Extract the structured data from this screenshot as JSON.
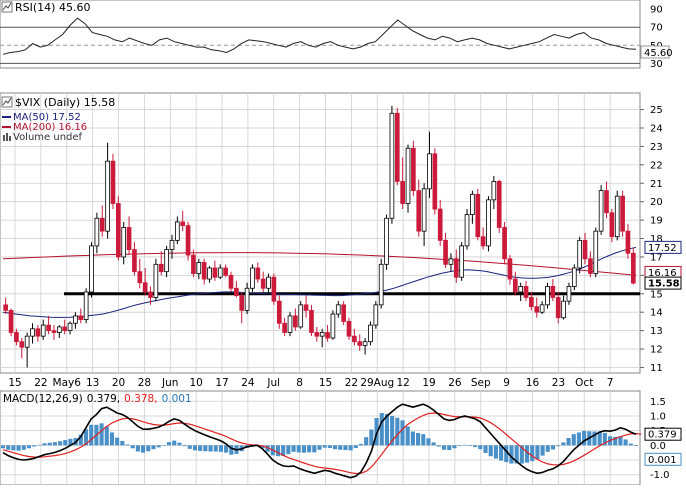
{
  "chart_data": {
    "type": "candlestick",
    "colors": {
      "up": "#000000",
      "down": "#cc1a3a",
      "ma50": "#1a237e",
      "ma200": "#b3122e",
      "macd": "#000000",
      "signal": "#e02020",
      "hist": "#4a90c8",
      "grid": "#cfcfcf",
      "support": "#000000"
    },
    "x_labels": [
      "15",
      "22",
      "May6",
      "13",
      "20",
      "28",
      "Jun",
      "10",
      "17",
      "24",
      "Jul",
      "8",
      "15",
      "22",
      "29Aug",
      "12",
      "19",
      "26",
      "Sep",
      "9",
      "16",
      "23",
      "Oct",
      "7"
    ],
    "rsi": {
      "legend": "RSI(14) 45.60",
      "value_label": "45.60",
      "ticks": [
        "90",
        "70",
        "50",
        "30"
      ],
      "tick_values": [
        90,
        70,
        50,
        30
      ],
      "ylim": [
        26,
        99
      ],
      "levels": [
        70,
        30
      ],
      "values": [
        40,
        42,
        43,
        45,
        52,
        48,
        50,
        56,
        62,
        72,
        80,
        74,
        64,
        62,
        60,
        56,
        54,
        58,
        55,
        52,
        50,
        56,
        58,
        54,
        52,
        50,
        48,
        48,
        45,
        44,
        42,
        46,
        52,
        56,
        55,
        54,
        52,
        50,
        48,
        52,
        54,
        50,
        48,
        52,
        54,
        50,
        48,
        46,
        48,
        52,
        54,
        62,
        70,
        78,
        72,
        66,
        62,
        58,
        56,
        60,
        58,
        54,
        56,
        58,
        56,
        52,
        50,
        48,
        46,
        48,
        50,
        52,
        54,
        58,
        62,
        60,
        58,
        62,
        64,
        58,
        56,
        52,
        50,
        48,
        46,
        45.6
      ]
    },
    "price": {
      "legend": "$VIX (Daily) 15.58",
      "legend_ma50": "MA(50) 17.52",
      "legend_ma200": "MA(200) 16.16",
      "legend_volume": "Volume undef",
      "ticks": [
        "25",
        "24",
        "23",
        "22",
        "21",
        "20",
        "19",
        "18",
        "17",
        "16",
        "15",
        "14",
        "13",
        "12",
        "11"
      ],
      "tick_values": [
        25,
        24,
        23,
        22,
        21,
        20,
        19,
        18,
        17,
        16,
        15,
        14,
        13,
        12,
        11
      ],
      "ylim": [
        10.7,
        25.9
      ],
      "support_level": 15.0,
      "ma50_label": "17.52",
      "ma50_value": 17.52,
      "ma200_label": "16.16",
      "ma200_value": 16.16,
      "last_label": "15.58",
      "last_value": 15.58,
      "candles": [
        [
          14.4,
          14.8,
          13.9,
          14.1
        ],
        [
          14.1,
          14.2,
          12.7,
          12.9
        ],
        [
          12.9,
          13.1,
          12.2,
          12.4
        ],
        [
          12.4,
          12.6,
          11.5,
          12.1
        ],
        [
          12.1,
          12.9,
          11.0,
          12.7
        ],
        [
          12.7,
          13.4,
          12.3,
          13.1
        ],
        [
          13.1,
          13.3,
          12.4,
          12.7
        ],
        [
          12.7,
          13.6,
          12.5,
          13.3
        ],
        [
          13.3,
          13.8,
          12.8,
          13.0
        ],
        [
          13.0,
          13.3,
          12.5,
          12.9
        ],
        [
          12.9,
          13.3,
          12.6,
          13.2
        ],
        [
          13.2,
          13.6,
          12.8,
          13.0
        ],
        [
          13.0,
          13.5,
          12.8,
          13.4
        ],
        [
          13.4,
          14.0,
          13.1,
          13.8
        ],
        [
          13.8,
          14.2,
          13.4,
          13.6
        ],
        [
          13.6,
          15.3,
          13.4,
          15.1
        ],
        [
          15.1,
          17.8,
          14.8,
          17.6
        ],
        [
          17.6,
          19.4,
          17.2,
          19.1
        ],
        [
          19.1,
          19.8,
          18.1,
          18.4
        ],
        [
          18.4,
          23.2,
          18.0,
          22.2
        ],
        [
          22.2,
          22.6,
          19.6,
          19.9
        ],
        [
          19.9,
          20.3,
          16.8,
          17.0
        ],
        [
          17.0,
          18.9,
          16.6,
          18.6
        ],
        [
          18.6,
          19.2,
          17.1,
          17.4
        ],
        [
          17.4,
          17.8,
          16.0,
          16.2
        ],
        [
          16.2,
          16.9,
          15.3,
          15.6
        ],
        [
          15.6,
          16.4,
          14.9,
          15.1
        ],
        [
          15.1,
          15.4,
          14.4,
          14.8
        ],
        [
          14.8,
          16.9,
          14.6,
          16.6
        ],
        [
          16.6,
          17.3,
          16.0,
          16.2
        ],
        [
          16.2,
          17.6,
          15.9,
          17.4
        ],
        [
          17.4,
          18.2,
          16.9,
          17.9
        ],
        [
          17.9,
          19.2,
          17.7,
          18.9
        ],
        [
          18.9,
          19.5,
          18.4,
          18.7
        ],
        [
          18.7,
          18.9,
          16.8,
          17.1
        ],
        [
          17.1,
          17.4,
          15.9,
          16.1
        ],
        [
          16.1,
          16.9,
          15.8,
          16.7
        ],
        [
          16.7,
          16.9,
          15.5,
          15.8
        ],
        [
          15.8,
          16.5,
          15.6,
          16.4
        ],
        [
          16.4,
          16.8,
          15.7,
          15.9
        ],
        [
          15.9,
          16.6,
          15.8,
          16.4
        ],
        [
          16.4,
          16.6,
          15.9,
          16.0
        ],
        [
          16.0,
          16.2,
          15.1,
          15.3
        ],
        [
          15.3,
          15.7,
          14.8,
          14.9
        ],
        [
          14.9,
          15.1,
          13.4,
          14.1
        ],
        [
          14.1,
          15.6,
          13.9,
          15.3
        ],
        [
          15.3,
          16.6,
          15.1,
          16.4
        ],
        [
          16.4,
          16.7,
          15.6,
          15.8
        ],
        [
          15.8,
          16.2,
          15.1,
          15.3
        ],
        [
          15.3,
          16.1,
          15.0,
          15.9
        ],
        [
          15.9,
          16.1,
          14.4,
          14.6
        ],
        [
          14.6,
          14.9,
          13.1,
          13.4
        ],
        [
          13.4,
          13.7,
          12.7,
          12.9
        ],
        [
          12.9,
          14.0,
          12.7,
          13.8
        ],
        [
          13.8,
          14.2,
          13.0,
          13.2
        ],
        [
          13.2,
          14.6,
          13.1,
          14.4
        ],
        [
          14.4,
          14.9,
          13.7,
          14.1
        ],
        [
          14.1,
          14.4,
          12.7,
          12.9
        ],
        [
          12.9,
          13.2,
          12.4,
          12.7
        ],
        [
          12.7,
          13.1,
          12.1,
          12.9
        ],
        [
          12.9,
          13.3,
          12.4,
          12.6
        ],
        [
          12.6,
          14.1,
          12.5,
          13.9
        ],
        [
          13.9,
          14.6,
          13.7,
          14.4
        ],
        [
          14.4,
          14.6,
          13.3,
          13.5
        ],
        [
          13.5,
          13.7,
          12.5,
          12.7
        ],
        [
          12.7,
          13.1,
          12.2,
          12.4
        ],
        [
          12.4,
          12.8,
          11.9,
          12.2
        ],
        [
          12.2,
          12.6,
          11.7,
          12.4
        ],
        [
          12.4,
          13.5,
          12.2,
          13.3
        ],
        [
          13.3,
          14.6,
          13.1,
          14.4
        ],
        [
          14.4,
          16.9,
          14.2,
          16.6
        ],
        [
          16.6,
          19.3,
          16.3,
          19.1
        ],
        [
          19.1,
          25.2,
          18.8,
          24.8
        ],
        [
          24.8,
          25.1,
          20.9,
          21.1
        ],
        [
          21.1,
          22.4,
          19.6,
          19.9
        ],
        [
          19.9,
          23.1,
          19.4,
          22.9
        ],
        [
          22.9,
          23.3,
          20.3,
          20.6
        ],
        [
          20.6,
          21.2,
          18.1,
          18.4
        ],
        [
          18.4,
          21.0,
          17.6,
          20.7
        ],
        [
          20.7,
          23.8,
          20.2,
          22.6
        ],
        [
          22.6,
          22.9,
          19.3,
          19.6
        ],
        [
          19.6,
          20.1,
          17.6,
          17.9
        ],
        [
          17.9,
          18.3,
          16.4,
          16.6
        ],
        [
          16.6,
          17.2,
          16.2,
          16.9
        ],
        [
          16.9,
          17.4,
          15.6,
          15.9
        ],
        [
          15.9,
          17.8,
          15.7,
          17.6
        ],
        [
          17.6,
          19.6,
          17.4,
          19.3
        ],
        [
          19.3,
          20.6,
          18.8,
          20.4
        ],
        [
          20.4,
          20.7,
          17.9,
          18.1
        ],
        [
          18.1,
          18.6,
          17.4,
          17.6
        ],
        [
          17.6,
          20.3,
          17.3,
          20.1
        ],
        [
          20.1,
          21.4,
          19.6,
          21.1
        ],
        [
          21.1,
          21.2,
          18.3,
          18.6
        ],
        [
          18.6,
          18.9,
          16.6,
          16.9
        ],
        [
          16.9,
          17.1,
          15.5,
          15.8
        ],
        [
          15.8,
          16.2,
          14.9,
          15.1
        ],
        [
          15.1,
          15.6,
          14.6,
          15.4
        ],
        [
          15.4,
          15.7,
          14.6,
          14.8
        ],
        [
          14.8,
          15.1,
          14.1,
          14.3
        ],
        [
          14.3,
          14.8,
          13.7,
          14.0
        ],
        [
          14.0,
          14.6,
          13.9,
          14.4
        ],
        [
          14.4,
          15.6,
          14.2,
          15.4
        ],
        [
          15.4,
          15.8,
          14.6,
          14.8
        ],
        [
          14.8,
          15.1,
          13.4,
          13.7
        ],
        [
          13.7,
          14.9,
          13.6,
          14.6
        ],
        [
          14.6,
          15.6,
          14.4,
          15.4
        ],
        [
          15.4,
          16.6,
          15.2,
          16.4
        ],
        [
          16.4,
          18.1,
          16.1,
          17.9
        ],
        [
          17.9,
          18.3,
          16.6,
          16.9
        ],
        [
          16.9,
          17.3,
          15.9,
          16.1
        ],
        [
          16.1,
          18.6,
          15.9,
          18.4
        ],
        [
          18.4,
          20.9,
          18.2,
          20.6
        ],
        [
          20.6,
          21.1,
          19.1,
          19.4
        ],
        [
          19.4,
          19.6,
          17.8,
          18.1
        ],
        [
          18.1,
          20.6,
          17.9,
          20.3
        ],
        [
          20.3,
          20.6,
          18.1,
          18.4
        ],
        [
          18.4,
          18.8,
          16.9,
          17.2
        ],
        [
          17.2,
          17.5,
          15.5,
          15.58
        ]
      ],
      "ma50": [
        14.0,
        13.95,
        13.9,
        13.85,
        13.8,
        13.78,
        13.75,
        13.73,
        13.72,
        13.72,
        13.73,
        13.75,
        13.78,
        13.82,
        13.86,
        13.92,
        14.0,
        14.1,
        14.2,
        14.32,
        14.42,
        14.5,
        14.58,
        14.65,
        14.72,
        14.78,
        14.84,
        14.9,
        14.96,
        15.0,
        15.03,
        15.06,
        15.08,
        15.1,
        15.1,
        15.08,
        15.06,
        15.04,
        15.02,
        15.0,
        14.99,
        14.98,
        14.97,
        14.96,
        14.95,
        14.94,
        14.93,
        14.92,
        14.91,
        14.9,
        14.9,
        14.92,
        14.95,
        14.98,
        15.02,
        15.06,
        15.12,
        15.2,
        15.3,
        15.42,
        15.54,
        15.66,
        15.78,
        15.9,
        16.0,
        16.1,
        16.18,
        16.24,
        16.28,
        16.3,
        16.28,
        16.25,
        16.2,
        16.12,
        16.04,
        15.96,
        15.9,
        15.86,
        15.84,
        15.84,
        15.86,
        15.9,
        15.96,
        16.04,
        16.14,
        16.26,
        16.4,
        16.56,
        16.74,
        16.92,
        17.08,
        17.22,
        17.34,
        17.44,
        17.52
      ]
    },
    "macd": {
      "legend": "MACD(12,26,9) 0.379, 0.378, 0.001",
      "legend_prefix": "MACD(12,26,9)",
      "legend_macd": "0.379,",
      "legend_signal": "0.378,",
      "legend_hist": "0.001",
      "ticks": [
        "1.5",
        "1.0",
        "0.5",
        "0.0",
        "-0.5",
        "-1.0"
      ],
      "tick_values": [
        1.5,
        1.0,
        0.5,
        0.0,
        -0.5,
        -1.0
      ],
      "ylim": [
        -1.35,
        1.85
      ],
      "macd_label": "0.379",
      "macd_value": 0.379,
      "hist_label": "0.001",
      "hist_value": 0.001,
      "macd_values": [
        -0.25,
        -0.35,
        -0.42,
        -0.48,
        -0.5,
        -0.48,
        -0.44,
        -0.38,
        -0.32,
        -0.28,
        -0.24,
        -0.18,
        -0.1,
        0.0,
        0.1,
        0.3,
        0.6,
        0.9,
        1.05,
        1.25,
        1.3,
        1.2,
        1.1,
        1.05,
        0.95,
        0.8,
        0.65,
        0.55,
        0.55,
        0.58,
        0.62,
        0.7,
        0.82,
        0.9,
        0.85,
        0.72,
        0.6,
        0.5,
        0.42,
        0.35,
        0.28,
        0.22,
        0.15,
        0.05,
        -0.1,
        -0.15,
        -0.12,
        -0.05,
        -0.02,
        0.0,
        -0.12,
        -0.3,
        -0.5,
        -0.62,
        -0.7,
        -0.72,
        -0.7,
        -0.78,
        -0.85,
        -0.9,
        -0.95,
        -0.9,
        -0.85,
        -0.88,
        -0.95,
        -1.0,
        -1.05,
        -1.1,
        -1.05,
        -0.9,
        -0.6,
        -0.2,
        0.4,
        0.8,
        1.0,
        1.15,
        1.3,
        1.4,
        1.35,
        1.3,
        1.35,
        1.4,
        1.32,
        1.2,
        1.05,
        0.9,
        0.85,
        0.88,
        0.95,
        1.0,
        0.95,
        0.9,
        0.8,
        0.6,
        0.4,
        0.2,
        0.0,
        -0.2,
        -0.4,
        -0.55,
        -0.7,
        -0.82,
        -0.9,
        -0.95,
        -0.92,
        -0.85,
        -0.8,
        -0.7,
        -0.55,
        -0.35,
        -0.15,
        0.0,
        0.15,
        0.25,
        0.35,
        0.45,
        0.5,
        0.48,
        0.52,
        0.6,
        0.55,
        0.45,
        0.379
      ],
      "signal_values": [
        -0.15,
        -0.2,
        -0.25,
        -0.3,
        -0.35,
        -0.38,
        -0.4,
        -0.4,
        -0.39,
        -0.37,
        -0.35,
        -0.32,
        -0.28,
        -0.22,
        -0.15,
        -0.06,
        0.05,
        0.2,
        0.35,
        0.5,
        0.65,
        0.76,
        0.84,
        0.9,
        0.92,
        0.9,
        0.86,
        0.8,
        0.75,
        0.71,
        0.69,
        0.69,
        0.71,
        0.74,
        0.76,
        0.75,
        0.72,
        0.67,
        0.61,
        0.55,
        0.49,
        0.43,
        0.37,
        0.3,
        0.22,
        0.14,
        0.08,
        0.04,
        0.02,
        0.01,
        -0.02,
        -0.08,
        -0.16,
        -0.25,
        -0.34,
        -0.42,
        -0.48,
        -0.54,
        -0.6,
        -0.66,
        -0.71,
        -0.75,
        -0.77,
        -0.79,
        -0.82,
        -0.85,
        -0.89,
        -0.93,
        -0.96,
        -0.95,
        -0.88,
        -0.74,
        -0.53,
        -0.3,
        -0.07,
        0.15,
        0.36,
        0.55,
        0.71,
        0.83,
        0.93,
        1.02,
        1.08,
        1.1,
        1.09,
        1.05,
        1.01,
        0.98,
        0.97,
        0.98,
        0.97,
        0.96,
        0.93,
        0.86,
        0.77,
        0.65,
        0.52,
        0.37,
        0.22,
        0.07,
        -0.08,
        -0.23,
        -0.36,
        -0.48,
        -0.57,
        -0.63,
        -0.66,
        -0.67,
        -0.65,
        -0.6,
        -0.53,
        -0.44,
        -0.34,
        -0.23,
        -0.12,
        -0.02,
        0.08,
        0.17,
        0.23,
        0.29,
        0.35,
        0.39,
        0.4,
        0.378
      ]
    }
  }
}
